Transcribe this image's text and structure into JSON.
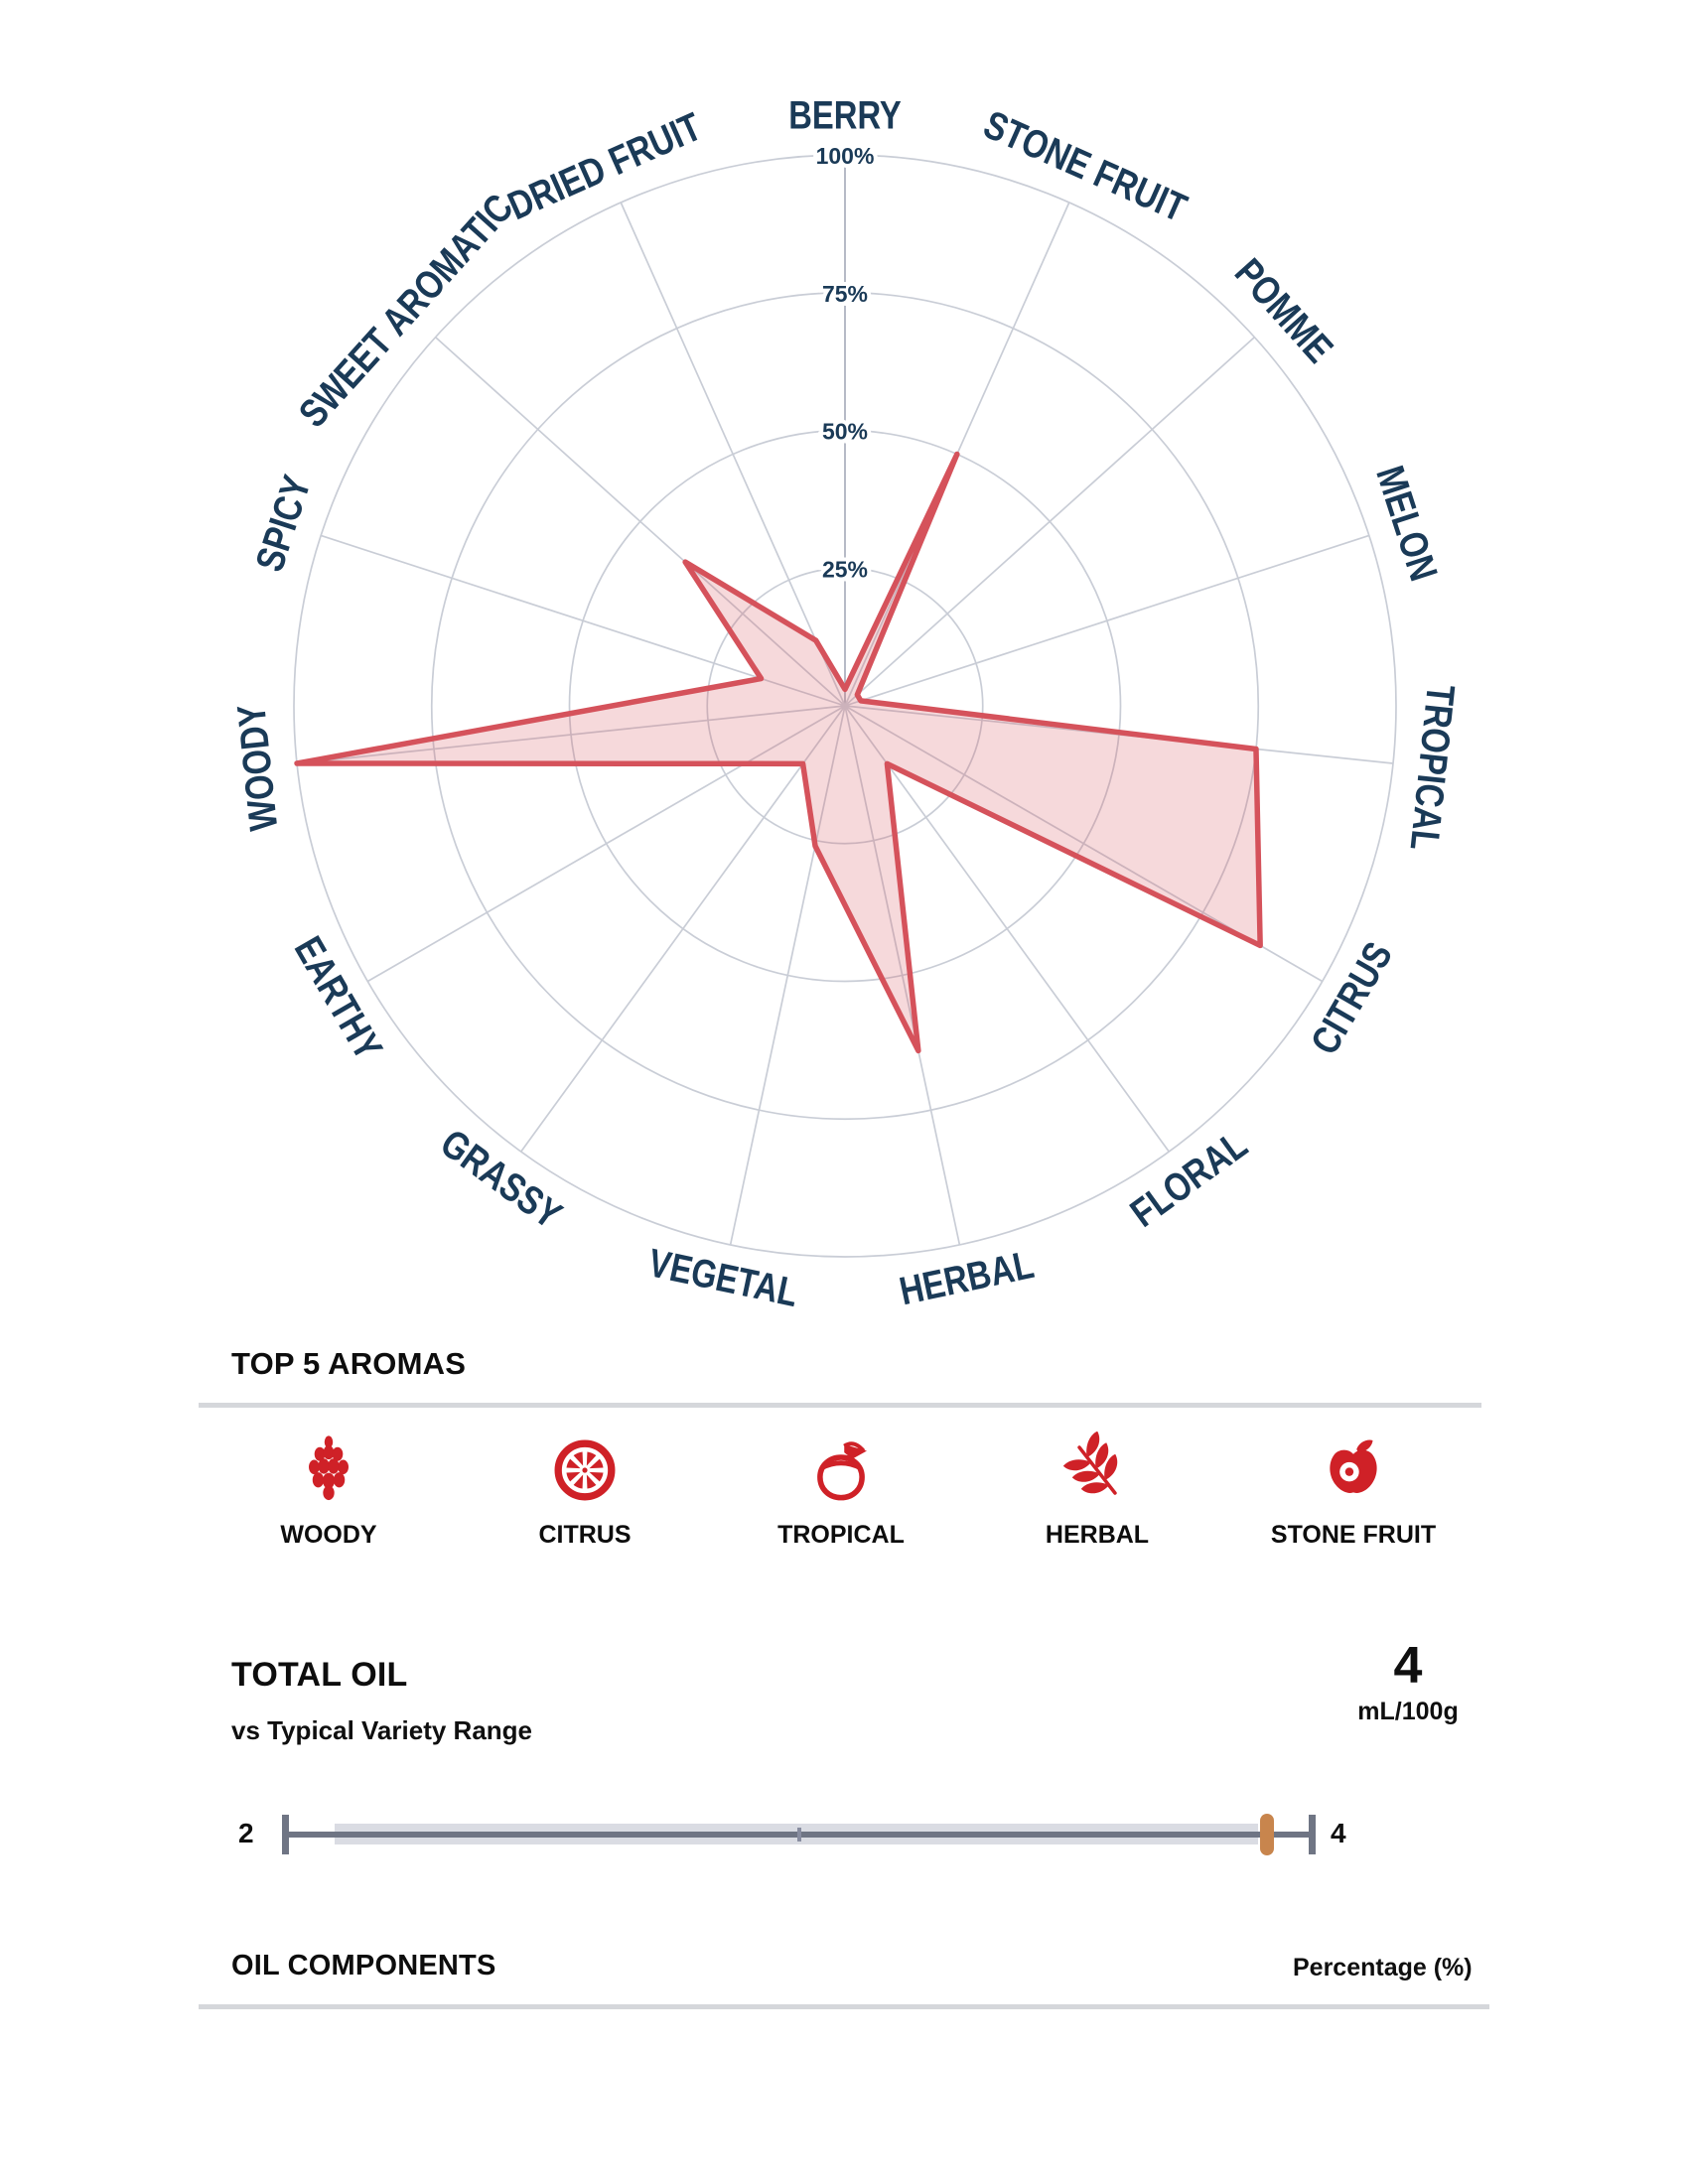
{
  "colors": {
    "accent": "#d5525b",
    "accent_fill": "rgba(213,82,91,0.22)",
    "icon_red": "#cf2127",
    "navy": "#1a3a57",
    "grid": "#c9cdd6",
    "axis_line": "#b6bac6",
    "divider": "#d5d7db",
    "slider_track": "#6f7584",
    "slider_band": "#dadce3",
    "slider_marker": "#c8854d"
  },
  "chart_data": [
    {
      "type": "radar",
      "categories": [
        "BERRY",
        "STONE FRUIT",
        "POMME",
        "MELON",
        "TROPICAL",
        "CITRUS",
        "FLORAL",
        "HERBAL",
        "VEGETAL",
        "GRASSY",
        "EARTHY",
        "WOODY",
        "SPICY",
        "SWEET AROMATIC",
        "DRIED FRUIT"
      ],
      "values": [
        3,
        50,
        3,
        3,
        75,
        87,
        13,
        64,
        26,
        13,
        21,
        100,
        16,
        39,
        13
      ],
      "unit": "%",
      "rmax": 100,
      "rings": [
        25,
        50,
        75,
        100
      ],
      "ring_labels": [
        "25%",
        "50%",
        "75%",
        "100%"
      ],
      "grid": "on",
      "legend": "none"
    },
    {
      "type": "range",
      "title": "TOTAL OIL",
      "subtitle": "vs Typical Variety Range",
      "value": 4,
      "unit": "mL/100g",
      "scale_min": 2,
      "scale_max": 4,
      "marker_value": 4
    }
  ],
  "top_aromas": {
    "header": "TOP 5 AROMAS",
    "items": [
      {
        "icon": "pinecone",
        "label": "WOODY"
      },
      {
        "icon": "citrus-slice",
        "label": "CITRUS"
      },
      {
        "icon": "coconut-drink",
        "label": "TROPICAL"
      },
      {
        "icon": "herb-sprig",
        "label": "HERBAL"
      },
      {
        "icon": "stone-fruit",
        "label": "STONE FRUIT"
      }
    ]
  },
  "total_oil": {
    "header": "TOTAL OIL",
    "subheader": "vs Typical Variety Range",
    "value": "4",
    "unit": "mL/100g",
    "range_min": "2",
    "range_max": "4"
  },
  "oil_components": {
    "header": "OIL COMPONENTS",
    "unit_label": "Percentage (%)"
  }
}
